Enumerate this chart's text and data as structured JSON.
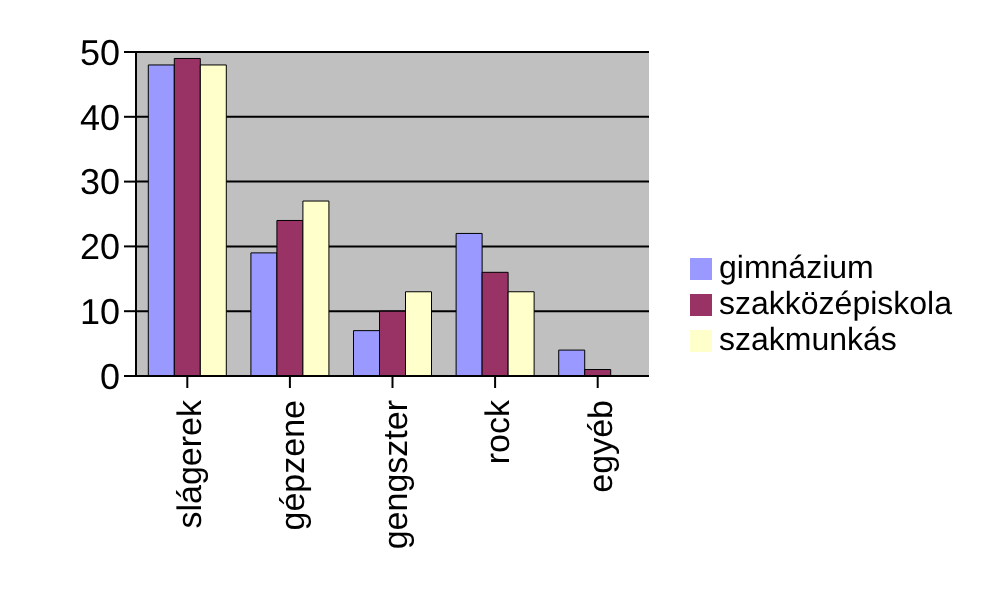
{
  "chart_data": {
    "type": "bar",
    "categories": [
      "slágerek",
      "gépzene",
      "gengszter",
      "rock",
      "egyéb"
    ],
    "series": [
      {
        "name": "gimnázium",
        "color": "#9999ff",
        "values": [
          48,
          19,
          7,
          22,
          4
        ]
      },
      {
        "name": "szakközépiskola",
        "color": "#993366",
        "values": [
          49,
          24,
          10,
          16,
          1
        ]
      },
      {
        "name": "szakmunkás",
        "color": "#ffffcc",
        "values": [
          48,
          27,
          13,
          13,
          0
        ]
      }
    ],
    "ylim": [
      0,
      50
    ],
    "yticks": [
      0,
      10,
      20,
      30,
      40,
      50
    ],
    "grid": "y",
    "legend": "right"
  }
}
